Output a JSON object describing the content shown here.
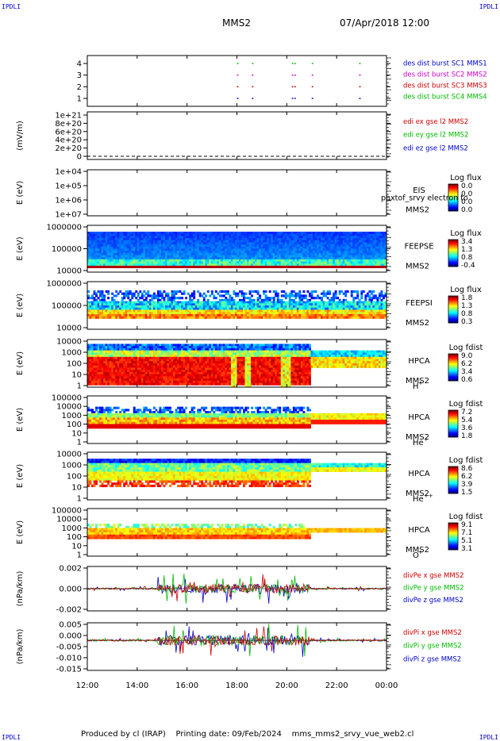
{
  "header": {
    "corner_left": "IPDLI",
    "corner_right": "IPDLI",
    "title": "MMS2",
    "datetime": "07/Apr/2018 12:00"
  },
  "footer": {
    "text": "Produced by cl (IRAP)    Printing date: 09/Feb/2024    mms_mms2_srvy_vue_web2.cl",
    "corner_left": "IPDLI",
    "corner_right": "IPDLI"
  },
  "colors": {
    "mms1": "#0000cc",
    "mms2": "#cc00cc",
    "mms3": "#cc0000",
    "mms4": "#00bb00",
    "x": "#cc0000",
    "y": "#00bb00",
    "z": "#0000cc"
  },
  "chart_data": [
    {
      "id": "burst",
      "type": "scatter",
      "yticks": [
        "1",
        "2",
        "3",
        "4"
      ],
      "legend": [
        {
          "label": "des dist burst SC1 MMS1",
          "color": "#0000cc"
        },
        {
          "label": "des dist burst SC2 MMS2",
          "color": "#cc00cc"
        },
        {
          "label": "des dist burst SC3 MMS3",
          "color": "#cc0000"
        },
        {
          "label": "des dist burst SC4 MMS4",
          "color": "#00bb00"
        }
      ],
      "burst_hours": [
        18.0,
        18.6,
        20.2,
        20.3,
        21.0,
        22.9
      ]
    },
    {
      "id": "edi",
      "type": "line",
      "ylabel": "(mV/m)",
      "yticks": [
        "0",
        "2e+20",
        "4e+20",
        "6e+20",
        "8e+20",
        "1e+21"
      ],
      "legend": [
        {
          "label": "edi ex gse l2 MMS2",
          "color": "#cc0000"
        },
        {
          "label": "edi ey gse l2 MMS2",
          "color": "#00bb00"
        },
        {
          "label": "edi ez gse l2 MMS2",
          "color": "#0000cc"
        }
      ]
    },
    {
      "id": "eis",
      "type": "heatmap",
      "ylabel": "E (eV)",
      "yticks": [
        "1e+04",
        "1e+05",
        "1e+06",
        "1e+07"
      ],
      "labels": [
        "EIS",
        "MMS2"
      ],
      "overlay": "phxtof_srvy electron to",
      "cbar_title": "Log flux",
      "cbar_ticks": [
        "0.0",
        "0.0",
        "0.0",
        "0.0"
      ]
    },
    {
      "id": "feepse",
      "type": "heatmap",
      "ylabel": "E (eV)",
      "yticks": [
        "1000000",
        "100000",
        "10000"
      ],
      "labels": [
        "FEEPSE",
        "MMS2"
      ],
      "cbar_title": "Log flux",
      "cbar_ticks": [
        "3.4",
        "1.3",
        "0.8",
        "-0.4"
      ]
    },
    {
      "id": "feepsi",
      "type": "heatmap",
      "ylabel": "E (eV)",
      "yticks": [
        "1000000",
        "100000",
        "10000"
      ],
      "labels": [
        "FEEPSI",
        "MMS2"
      ],
      "cbar_title": "Log flux",
      "cbar_ticks": [
        "1.8",
        "1.3",
        "0.8",
        "0.3"
      ]
    },
    {
      "id": "hpca_h",
      "type": "heatmap",
      "ylabel": "E (eV)",
      "yticks": [
        "10000",
        "1000",
        "100",
        "10",
        "1"
      ],
      "labels": [
        "HPCA",
        "MMS2"
      ],
      "species": "H",
      "species_sup": "+",
      "cbar_title": "Log fdist",
      "cbar_ticks": [
        "9.0",
        "6.2",
        "3.4",
        "0.6"
      ]
    },
    {
      "id": "hpca_he",
      "type": "heatmap",
      "ylabel": "E (eV)",
      "yticks": [
        "100000",
        "10000",
        "1000",
        "100",
        "10",
        "1"
      ],
      "labels": [
        "HPCA",
        "MMS2"
      ],
      "species": "He",
      "species_sup": "+",
      "cbar_title": "Log fdist",
      "cbar_ticks": [
        "7.2",
        "5.4",
        "3.6",
        "1.8"
      ]
    },
    {
      "id": "hpca_hepp",
      "type": "heatmap",
      "ylabel": "E (eV)",
      "yticks": [
        "10000",
        "1000",
        "100",
        "10",
        "1"
      ],
      "labels": [
        "HPCA",
        "MMS2"
      ],
      "species": "He",
      "species_sup": "++",
      "cbar_title": "Log fdist",
      "cbar_ticks": [
        "8.6",
        "6.2",
        "3.9",
        "1.5"
      ]
    },
    {
      "id": "hpca_o",
      "type": "heatmap",
      "ylabel": "E (eV)",
      "yticks": [
        "100000",
        "10000",
        "1000",
        "100",
        "10",
        "1"
      ],
      "labels": [
        "HPCA",
        "MMS2"
      ],
      "species": "O",
      "species_sup": "+",
      "cbar_title": "Log fdist",
      "cbar_ticks": [
        "9.1",
        "7.1",
        "5.1",
        "3.1"
      ]
    },
    {
      "id": "divpe",
      "type": "line",
      "ylabel": "(nPa/km)",
      "yticks": [
        "0.002",
        "0.000",
        "-0.002"
      ],
      "legend": [
        {
          "label": "divPe x gse MMS2",
          "color": "#cc0000"
        },
        {
          "label": "divPe y gse MMS2",
          "color": "#00bb00"
        },
        {
          "label": "divPe z gse MMS2",
          "color": "#0000cc"
        }
      ]
    },
    {
      "id": "divpi",
      "type": "line",
      "ylabel": "(nPa/km)",
      "yticks": [
        "0.005",
        "0.000",
        "-0.005",
        "-0.010",
        "-0.015"
      ],
      "legend": [
        {
          "label": "divPi x gse MMS2",
          "color": "#cc0000"
        },
        {
          "label": "divPi y gse MMS2",
          "color": "#00bb00"
        },
        {
          "label": "divPi z gse MMS2",
          "color": "#0000cc"
        }
      ]
    }
  ],
  "x_axis": {
    "ticks": [
      "12:00",
      "14:00",
      "16:00",
      "18:00",
      "20:00",
      "22:00",
      "00:00"
    ],
    "range_hours": [
      12,
      24
    ]
  }
}
